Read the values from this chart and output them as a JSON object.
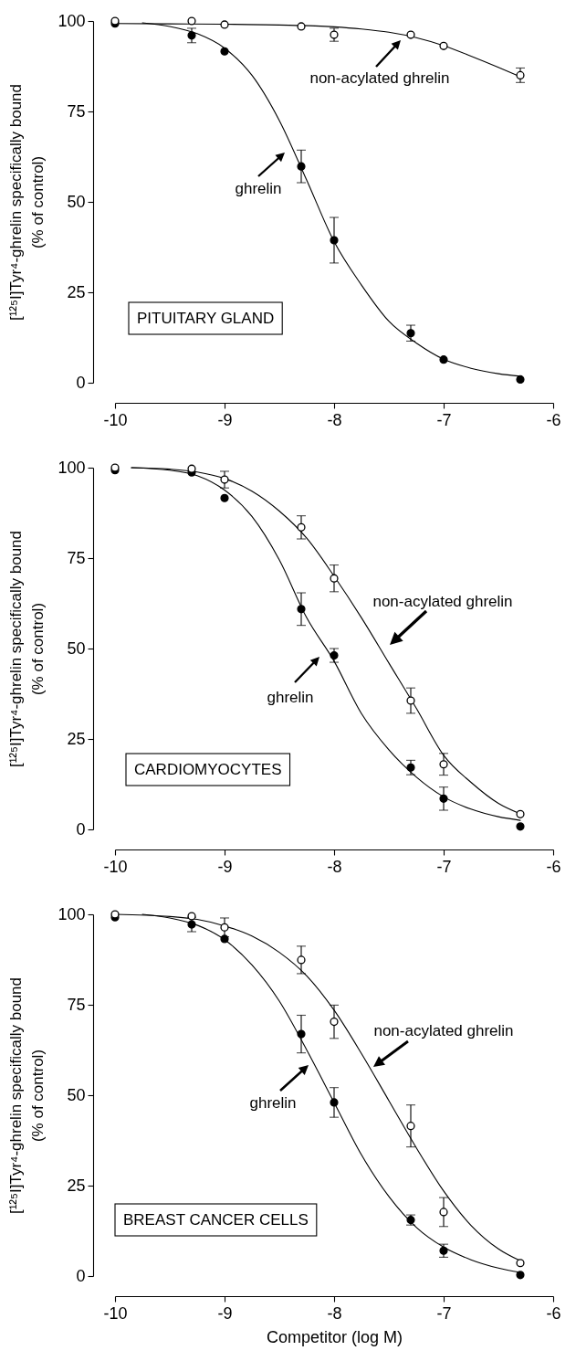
{
  "chart_data": [
    {
      "type": "scatter",
      "ylabel": "[¹²⁵I]Tyr⁴-ghrelin specifically bound\n(% of control)",
      "xlim": [
        -10,
        -6
      ],
      "ylim": [
        0,
        100
      ],
      "xticks": [
        -10,
        -9,
        -8,
        -7,
        -6
      ],
      "yticks": [
        0,
        25,
        50,
        75,
        100
      ],
      "marker": "circle",
      "annotations": [
        "PITUITARY GLAND",
        "non-acylated ghrelin",
        "ghrelin"
      ],
      "series": [
        {
          "type": "line",
          "marker": "none",
          "color": "#000000",
          "x": [
            -9.75,
            -9.5,
            -9.25,
            -9,
            -8.75,
            -8.5,
            -8.25,
            -8,
            -7.75,
            -7.5,
            -7.25,
            -7,
            -6.75,
            -6.5,
            -6.3
          ],
          "values": [
            99.5,
            98.5,
            96.5,
            92.5,
            85,
            72.5,
            56,
            39,
            27,
            17,
            11,
            6.5,
            4,
            2.5,
            1.8
          ]
        },
        {
          "type": "line",
          "marker": "none",
          "color": "#000000",
          "x": [
            -10,
            -9.5,
            -9,
            -8.5,
            -8,
            -7.75,
            -7.5,
            -7.25,
            -7,
            -6.75,
            -6.5,
            -6.3
          ],
          "values": [
            99.3,
            99.2,
            99.1,
            98.9,
            98.4,
            97.8,
            96.9,
            95.4,
            93.2,
            90.3,
            87.2,
            84.6
          ]
        },
        {
          "color": "#000000",
          "x": [
            -10,
            -9.3,
            -9,
            -8.3,
            -8,
            -7.3,
            -7,
            -6.3
          ],
          "values": [
            99.3,
            96,
            91.6,
            59.8,
            39.4,
            13.7,
            6.4,
            0.9
          ],
          "errors": [
            null,
            2,
            null,
            4.5,
            6.3,
            2.2,
            null,
            null
          ]
        },
        {
          "color": "#ffffff",
          "x": [
            -10,
            -9.3,
            -9,
            -8.3,
            -8,
            -7.3,
            -7,
            -6.3
          ],
          "values": [
            100,
            100,
            99,
            98.5,
            96.2,
            96.2,
            93.1,
            85
          ],
          "errors": [
            null,
            null,
            null,
            null,
            1.8,
            null,
            null,
            2
          ]
        }
      ]
    },
    {
      "type": "scatter",
      "ylabel": "[¹²⁵I]Tyr⁴-ghrelin specifically bound\n(% of control)",
      "xlim": [
        -10,
        -6
      ],
      "ylim": [
        0,
        100
      ],
      "xticks": [
        -10,
        -9,
        -8,
        -7,
        -6
      ],
      "yticks": [
        0,
        25,
        50,
        75,
        100
      ],
      "marker": "circle",
      "annotations": [
        "CARDIOMYOCYTES",
        "non-acylated ghrelin",
        "ghrelin"
      ],
      "series": [
        {
          "type": "line",
          "marker": "none",
          "color": "#000000",
          "x": [
            -9.85,
            -9.5,
            -9.25,
            -9,
            -8.75,
            -8.5,
            -8.25,
            -8,
            -7.75,
            -7.5,
            -7.25,
            -7,
            -6.75,
            -6.5,
            -6.3
          ],
          "values": [
            100,
            99.3,
            97.8,
            93.8,
            86.5,
            74.5,
            58.5,
            46.5,
            32,
            22,
            14.5,
            9,
            5.6,
            3.5,
            2.5
          ]
        },
        {
          "type": "line",
          "marker": "none",
          "color": "#000000",
          "x": [
            -9.85,
            -9.5,
            -9.25,
            -9,
            -8.75,
            -8.5,
            -8.25,
            -8,
            -7.75,
            -7.5,
            -7.25,
            -7,
            -6.75,
            -6.5,
            -6.3
          ],
          "values": [
            100,
            99.6,
            98.8,
            97,
            93.5,
            88,
            80.5,
            70,
            58.5,
            46,
            33.5,
            20.5,
            13,
            7.2,
            4.3
          ]
        },
        {
          "color": "#000000",
          "x": [
            -10,
            -9.3,
            -9,
            -8.3,
            -8,
            -7.3,
            -7,
            -6.3
          ],
          "values": [
            99.3,
            98.7,
            91.6,
            60.9,
            48.1,
            17.1,
            8.5,
            0.8
          ],
          "errors": [
            null,
            null,
            null,
            4.5,
            1.9,
            2,
            3.2,
            null
          ]
        },
        {
          "color": "#ffffff",
          "x": [
            -10,
            -9.3,
            -9,
            -8.3,
            -8,
            -7.3,
            -7,
            -6.3
          ],
          "values": [
            100,
            99.7,
            96.7,
            83.5,
            69.4,
            35.6,
            18,
            4.2
          ],
          "errors": [
            null,
            null,
            2.3,
            3.2,
            3.7,
            3.5,
            3,
            null
          ]
        }
      ]
    },
    {
      "type": "scatter",
      "xlabel": "Competitor (log M)",
      "ylabel": "[¹²⁵I]Tyr⁴-ghrelin specifically bound\n(% of control)",
      "xlim": [
        -10,
        -6
      ],
      "ylim": [
        0,
        100
      ],
      "xticks": [
        -10,
        -9,
        -8,
        -7,
        -6
      ],
      "yticks": [
        0,
        25,
        50,
        75,
        100
      ],
      "marker": "circle",
      "annotations": [
        "BREAST CANCER CELLS",
        "non-acylated ghrelin",
        "ghrelin"
      ],
      "series": [
        {
          "type": "line",
          "marker": "none",
          "color": "#000000",
          "x": [
            -9.75,
            -9.5,
            -9.25,
            -9,
            -8.75,
            -8.5,
            -8.25,
            -8,
            -7.75,
            -7.5,
            -7.25,
            -7,
            -6.75,
            -6.5,
            -6.3
          ],
          "values": [
            100,
            99,
            97,
            93,
            86,
            76,
            62.5,
            48,
            33.5,
            22,
            13.5,
            8,
            4.5,
            2.2,
            1
          ]
        },
        {
          "type": "line",
          "marker": "none",
          "color": "#000000",
          "x": [
            -10,
            -9.5,
            -9.25,
            -9,
            -8.75,
            -8.5,
            -8.25,
            -8,
            -7.75,
            -7.5,
            -7.25,
            -7,
            -6.75,
            -6.5,
            -6.3
          ],
          "values": [
            100,
            99.4,
            98.6,
            96.8,
            94,
            89.5,
            83,
            73.5,
            61.5,
            48.5,
            35.5,
            23.5,
            14,
            7.5,
            4.2
          ]
        },
        {
          "color": "#000000",
          "x": [
            -10,
            -9.3,
            -9,
            -8.3,
            -8,
            -7.3,
            -7,
            -6.3
          ],
          "values": [
            99.2,
            97.2,
            93.2,
            66.9,
            48,
            15.5,
            7,
            0.3
          ],
          "errors": [
            null,
            2,
            null,
            5.2,
            4.1,
            1.4,
            1.8,
            null
          ]
        },
        {
          "color": "#ffffff",
          "x": [
            -10,
            -9.3,
            -9,
            -8.3,
            -8,
            -7.3,
            -7,
            -6.3
          ],
          "values": [
            100,
            99.5,
            96.4,
            87.4,
            70.3,
            41.5,
            17.7,
            3.6
          ],
          "errors": [
            null,
            null,
            2.6,
            3.8,
            4.6,
            5.8,
            4,
            null
          ]
        }
      ]
    }
  ]
}
